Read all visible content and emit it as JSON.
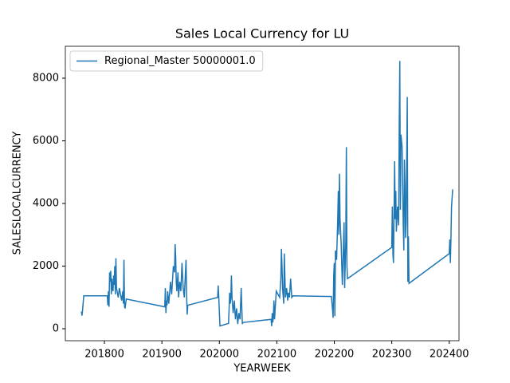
{
  "chart_data": {
    "type": "line",
    "title": "Sales Local Currency for LU",
    "x_label": "YEARWEEK",
    "y_label": "SALESLOCALCURRENCY",
    "legend": "upper left",
    "xlim": [
      201732,
      202417
    ],
    "ylim": [
      -382,
      9019
    ],
    "xticks": [
      201800,
      201900,
      202000,
      202100,
      202200,
      202300,
      202400
    ],
    "yticks": [
      0,
      2000,
      4000,
      6000,
      8000
    ],
    "series": [
      {
        "name": "Regional_Master 50000001.0",
        "color": "#1f77b4",
        "x": [
          201760,
          201761,
          201762,
          201764,
          201805,
          201806,
          201807,
          201808,
          201809,
          201810,
          201811,
          201812,
          201813,
          201814,
          201815,
          201816,
          201817,
          201818,
          201819,
          201820,
          201821,
          201822,
          201824,
          201826,
          201828,
          201830,
          201832,
          201833,
          201834,
          201835,
          201836,
          201838,
          201905,
          201906,
          201907,
          201908,
          201909,
          201910,
          201912,
          201915,
          201917,
          201920,
          201922,
          201923,
          201924,
          201925,
          201926,
          201928,
          201929,
          201931,
          201933,
          201935,
          201937,
          201939,
          201942,
          201943,
          201944,
          201945,
          201997,
          201998,
          201999,
          202001,
          202016,
          202018,
          202019,
          202020,
          202021,
          202022,
          202024,
          202026,
          202028,
          202030,
          202032,
          202034,
          202036,
          202038,
          202039,
          202040,
          202041,
          202090,
          202091,
          202092,
          202093,
          202094,
          202095,
          202096,
          202097,
          202099,
          202105,
          202107,
          202108,
          202109,
          202110,
          202112,
          202113,
          202115,
          202117,
          202119,
          202120,
          202122,
          202124,
          202126,
          202128,
          202195,
          202196,
          202197,
          202198,
          202199,
          202200,
          202201,
          202202,
          202204,
          202206,
          202207,
          202208,
          202209,
          202210,
          202212,
          202214,
          202215,
          202217,
          202218,
          202220,
          202221,
          202222,
          202223,
          202300,
          202301,
          202302,
          202303,
          202305,
          202306,
          202307,
          202308,
          202310,
          202312,
          202313,
          202314,
          202315,
          202316,
          202318,
          202320,
          202321,
          202322,
          202323,
          202324,
          202325,
          202327,
          202328,
          202329,
          202330,
          202400,
          202401,
          202402,
          202403,
          202404,
          202406
        ],
        "values": [
          550,
          420,
          600,
          1050,
          1050,
          750,
          1200,
          700,
          1800,
          1500,
          1850,
          1100,
          1600,
          1300,
          1200,
          1700,
          1400,
          2000,
          1100,
          2250,
          1300,
          1200,
          1000,
          1300,
          1100,
          900,
          1200,
          800,
          2200,
          700,
          650,
          950,
          700,
          1300,
          500,
          900,
          750,
          1200,
          800,
          1500,
          1100,
          2000,
          1800,
          2700,
          2300,
          1500,
          1200,
          1800,
          1000,
          1500,
          1200,
          2100,
          1300,
          1000,
          2200,
          1100,
          450,
          750,
          1000,
          1380,
          1000,
          90,
          170,
          1150,
          800,
          1000,
          1700,
          1000,
          500,
          900,
          300,
          650,
          150,
          500,
          300,
          1300,
          700,
          150,
          200,
          300,
          80,
          500,
          200,
          400,
          900,
          300,
          600,
          1200,
          1000,
          1600,
          2550,
          2000,
          1300,
          800,
          2400,
          1000,
          1300,
          900,
          1150,
          1000,
          1600,
          1000,
          1050,
          1030,
          800,
          600,
          350,
          1700,
          2100,
          400,
          2500,
          2200,
          3500,
          4400,
          3000,
          4950,
          3500,
          2700,
          1400,
          2000,
          3400,
          1300,
          2800,
          5800,
          2000,
          1600,
          2600,
          3900,
          2400,
          2100,
          5350,
          3500,
          4400,
          3100,
          3900,
          3300,
          6500,
          8550,
          3800,
          6200,
          5800,
          3300,
          2500,
          5400,
          4600,
          2900,
          3400,
          7400,
          1500,
          2950,
          1450,
          2400,
          2850,
          2100,
          2900,
          3900,
          4450
        ]
      }
    ]
  }
}
